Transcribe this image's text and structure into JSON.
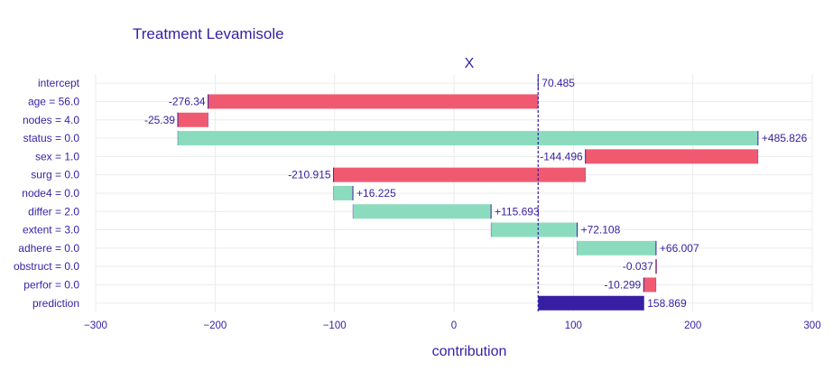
{
  "chart_data": {
    "type": "bar",
    "subtype": "waterfall",
    "title": "Treatment Levamisole",
    "subtitle": "X",
    "xlabel": "contribution",
    "ylabel": "",
    "xlim": [
      -300,
      300
    ],
    "xticks": [
      -300,
      -200,
      -100,
      0,
      100,
      200,
      300
    ],
    "xtick_labels": [
      "−300",
      "−200",
      "−100",
      "0",
      "100",
      "200",
      "300"
    ],
    "grid": true,
    "baseline": 70.485,
    "colors": {
      "positive": "#8bdcbe",
      "negative": "#f05a71",
      "prediction": "#371ea3",
      "text": "#371ea3",
      "grid": "#ebebeb"
    },
    "bars": [
      {
        "variable": "intercept",
        "start": 70.485,
        "end": 70.485,
        "label": "70.485",
        "sign": "intercept"
      },
      {
        "variable": "age = 56.0",
        "start": 70.485,
        "end": -205.855,
        "label": "-276.34",
        "sign": "negative"
      },
      {
        "variable": "nodes = 4.0",
        "start": -205.855,
        "end": -231.245,
        "label": "-25.39",
        "sign": "negative"
      },
      {
        "variable": "status = 0.0",
        "start": -231.245,
        "end": 254.581,
        "label": "+485.826",
        "sign": "positive"
      },
      {
        "variable": "sex = 1.0",
        "start": 254.581,
        "end": 110.085,
        "label": "-144.496",
        "sign": "negative"
      },
      {
        "variable": "surg = 0.0",
        "start": 110.085,
        "end": -100.83,
        "label": "-210.915",
        "sign": "negative"
      },
      {
        "variable": "node4 = 0.0",
        "start": -100.83,
        "end": -84.605,
        "label": "+16.225",
        "sign": "positive"
      },
      {
        "variable": "differ = 2.0",
        "start": -84.605,
        "end": 31.088,
        "label": "+115.693",
        "sign": "positive"
      },
      {
        "variable": "extent = 3.0",
        "start": 31.088,
        "end": 103.196,
        "label": "+72.108",
        "sign": "positive"
      },
      {
        "variable": "adhere = 0.0",
        "start": 103.196,
        "end": 169.203,
        "label": "+66.007",
        "sign": "positive"
      },
      {
        "variable": "obstruct = 0.0",
        "start": 169.203,
        "end": 169.166,
        "label": "-0.037",
        "sign": "negative"
      },
      {
        "variable": "perfor = 0.0",
        "start": 169.166,
        "end": 158.867,
        "label": "-10.299",
        "sign": "negative"
      },
      {
        "variable": "prediction",
        "start": 70.485,
        "end": 158.869,
        "label": "158.869",
        "sign": "prediction"
      }
    ]
  }
}
